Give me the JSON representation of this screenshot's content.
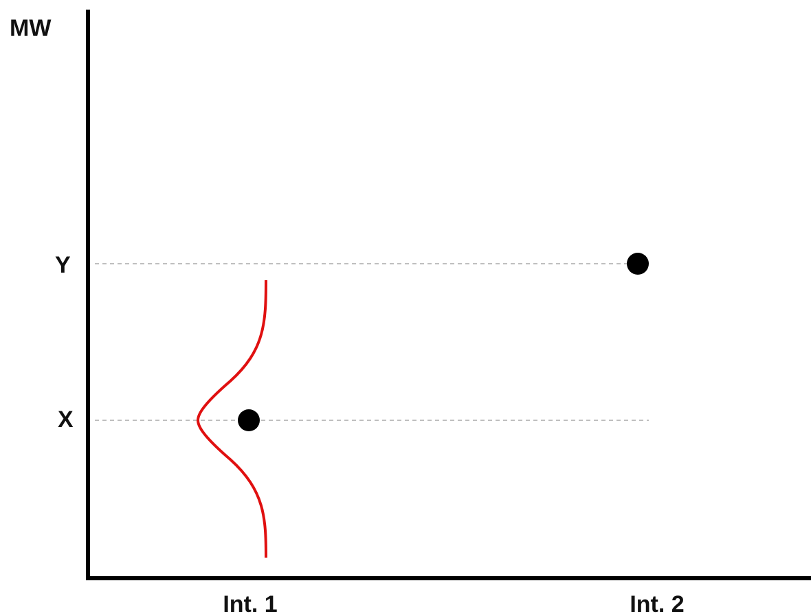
{
  "chart_data": {
    "type": "scatter",
    "ylabel": "MW",
    "categories": [
      "Int. 1",
      "Int. 2"
    ],
    "y_ticks": [
      "X",
      "Y"
    ],
    "points": [
      {
        "category": "Int. 1",
        "y": "X"
      },
      {
        "category": "Int. 2",
        "y": "Y"
      }
    ],
    "reference_lines": [
      "X",
      "Y"
    ],
    "distribution_curve": {
      "category": "Int. 1",
      "center": "X",
      "color": "#e01010"
    },
    "grid": false,
    "colors": {
      "axis": "#000000",
      "points": "#000000",
      "reference_lines": "#aaaaaa",
      "curve": "#e01010"
    }
  }
}
